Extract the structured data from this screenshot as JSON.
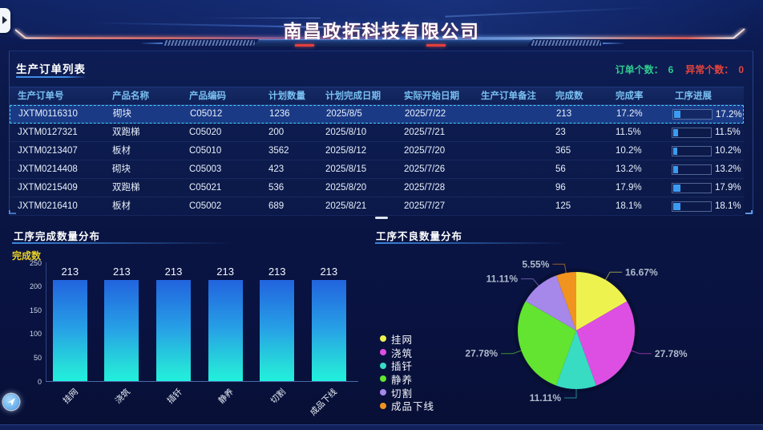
{
  "header": {
    "title": "南昌政拓科技有限公司"
  },
  "order_panel": {
    "title": "生产订单列表",
    "stats": [
      {
        "label": "订单个数：",
        "value": "6",
        "color": "#2ecb8e"
      },
      {
        "label": "异常个数：",
        "value": "0",
        "color": "#e8453c"
      }
    ]
  },
  "table": {
    "columns": [
      "生产订单号",
      "产品名称",
      "产品编码",
      "计划数量",
      "计划完成日期",
      "实际开始日期",
      "生产订单备注",
      "完成数",
      "完成率",
      "工序进展"
    ],
    "rows": [
      {
        "cells": [
          "JXTM0116310",
          "砌块",
          "C05012",
          "1236",
          "2025/8/5",
          "2025/7/22",
          "",
          "213",
          "17.2%"
        ],
        "progress": 17.2,
        "progress_label": "17.2%",
        "selected": true
      },
      {
        "cells": [
          "JXTM0127321",
          "双跑梯",
          "C05020",
          "200",
          "2025/8/10",
          "2025/7/21",
          "",
          "23",
          "11.5%"
        ],
        "progress": 11.5,
        "progress_label": "11.5%",
        "selected": false
      },
      {
        "cells": [
          "JXTM0213407",
          "板材",
          "C05010",
          "3562",
          "2025/8/12",
          "2025/7/20",
          "",
          "365",
          "10.2%"
        ],
        "progress": 10.2,
        "progress_label": "10.2%",
        "selected": false
      },
      {
        "cells": [
          "JXTM0214408",
          "砌块",
          "C05003",
          "423",
          "2025/8/15",
          "2025/7/26",
          "",
          "56",
          "13.2%"
        ],
        "progress": 13.2,
        "progress_label": "13.2%",
        "selected": false
      },
      {
        "cells": [
          "JXTM0215409",
          "双跑梯",
          "C05021",
          "536",
          "2025/8/20",
          "2025/7/28",
          "",
          "96",
          "17.9%"
        ],
        "progress": 17.9,
        "progress_label": "17.9%",
        "selected": false
      },
      {
        "cells": [
          "JXTM0216410",
          "板材",
          "C05002",
          "689",
          "2025/8/21",
          "2025/7/27",
          "",
          "125",
          "18.1%"
        ],
        "progress": 18.1,
        "progress_label": "18.1%",
        "selected": false
      }
    ]
  },
  "chart_data": [
    {
      "type": "bar",
      "title": "工序完成数量分布",
      "ylabel": "完成数",
      "categories": [
        "挂网",
        "浇筑",
        "插钎",
        "静养",
        "切割",
        "成品下线"
      ],
      "values": [
        213,
        213,
        213,
        213,
        213,
        213
      ],
      "ylim": [
        0,
        250
      ],
      "yticks": [
        0,
        50,
        100,
        150,
        200,
        250
      ],
      "grid": false,
      "bar_color_top": "#2263de",
      "bar_color_bottom": "#21f0dd"
    },
    {
      "type": "pie",
      "title": "工序不良数量分布",
      "legend_position": "left",
      "labels": [
        "挂网",
        "浇筑",
        "插钎",
        "静养",
        "切割",
        "成品下线"
      ],
      "values": [
        16.67,
        27.78,
        11.11,
        27.78,
        11.11,
        5.55
      ],
      "display_labels": [
        "16.67%",
        "27.78%",
        "11.11%",
        "27.78%",
        "11.11%",
        "5.55%"
      ],
      "colors": [
        "#eef24e",
        "#dd4fe2",
        "#38dcc3",
        "#62e430",
        "#a687ea",
        "#f0931f"
      ]
    }
  ]
}
